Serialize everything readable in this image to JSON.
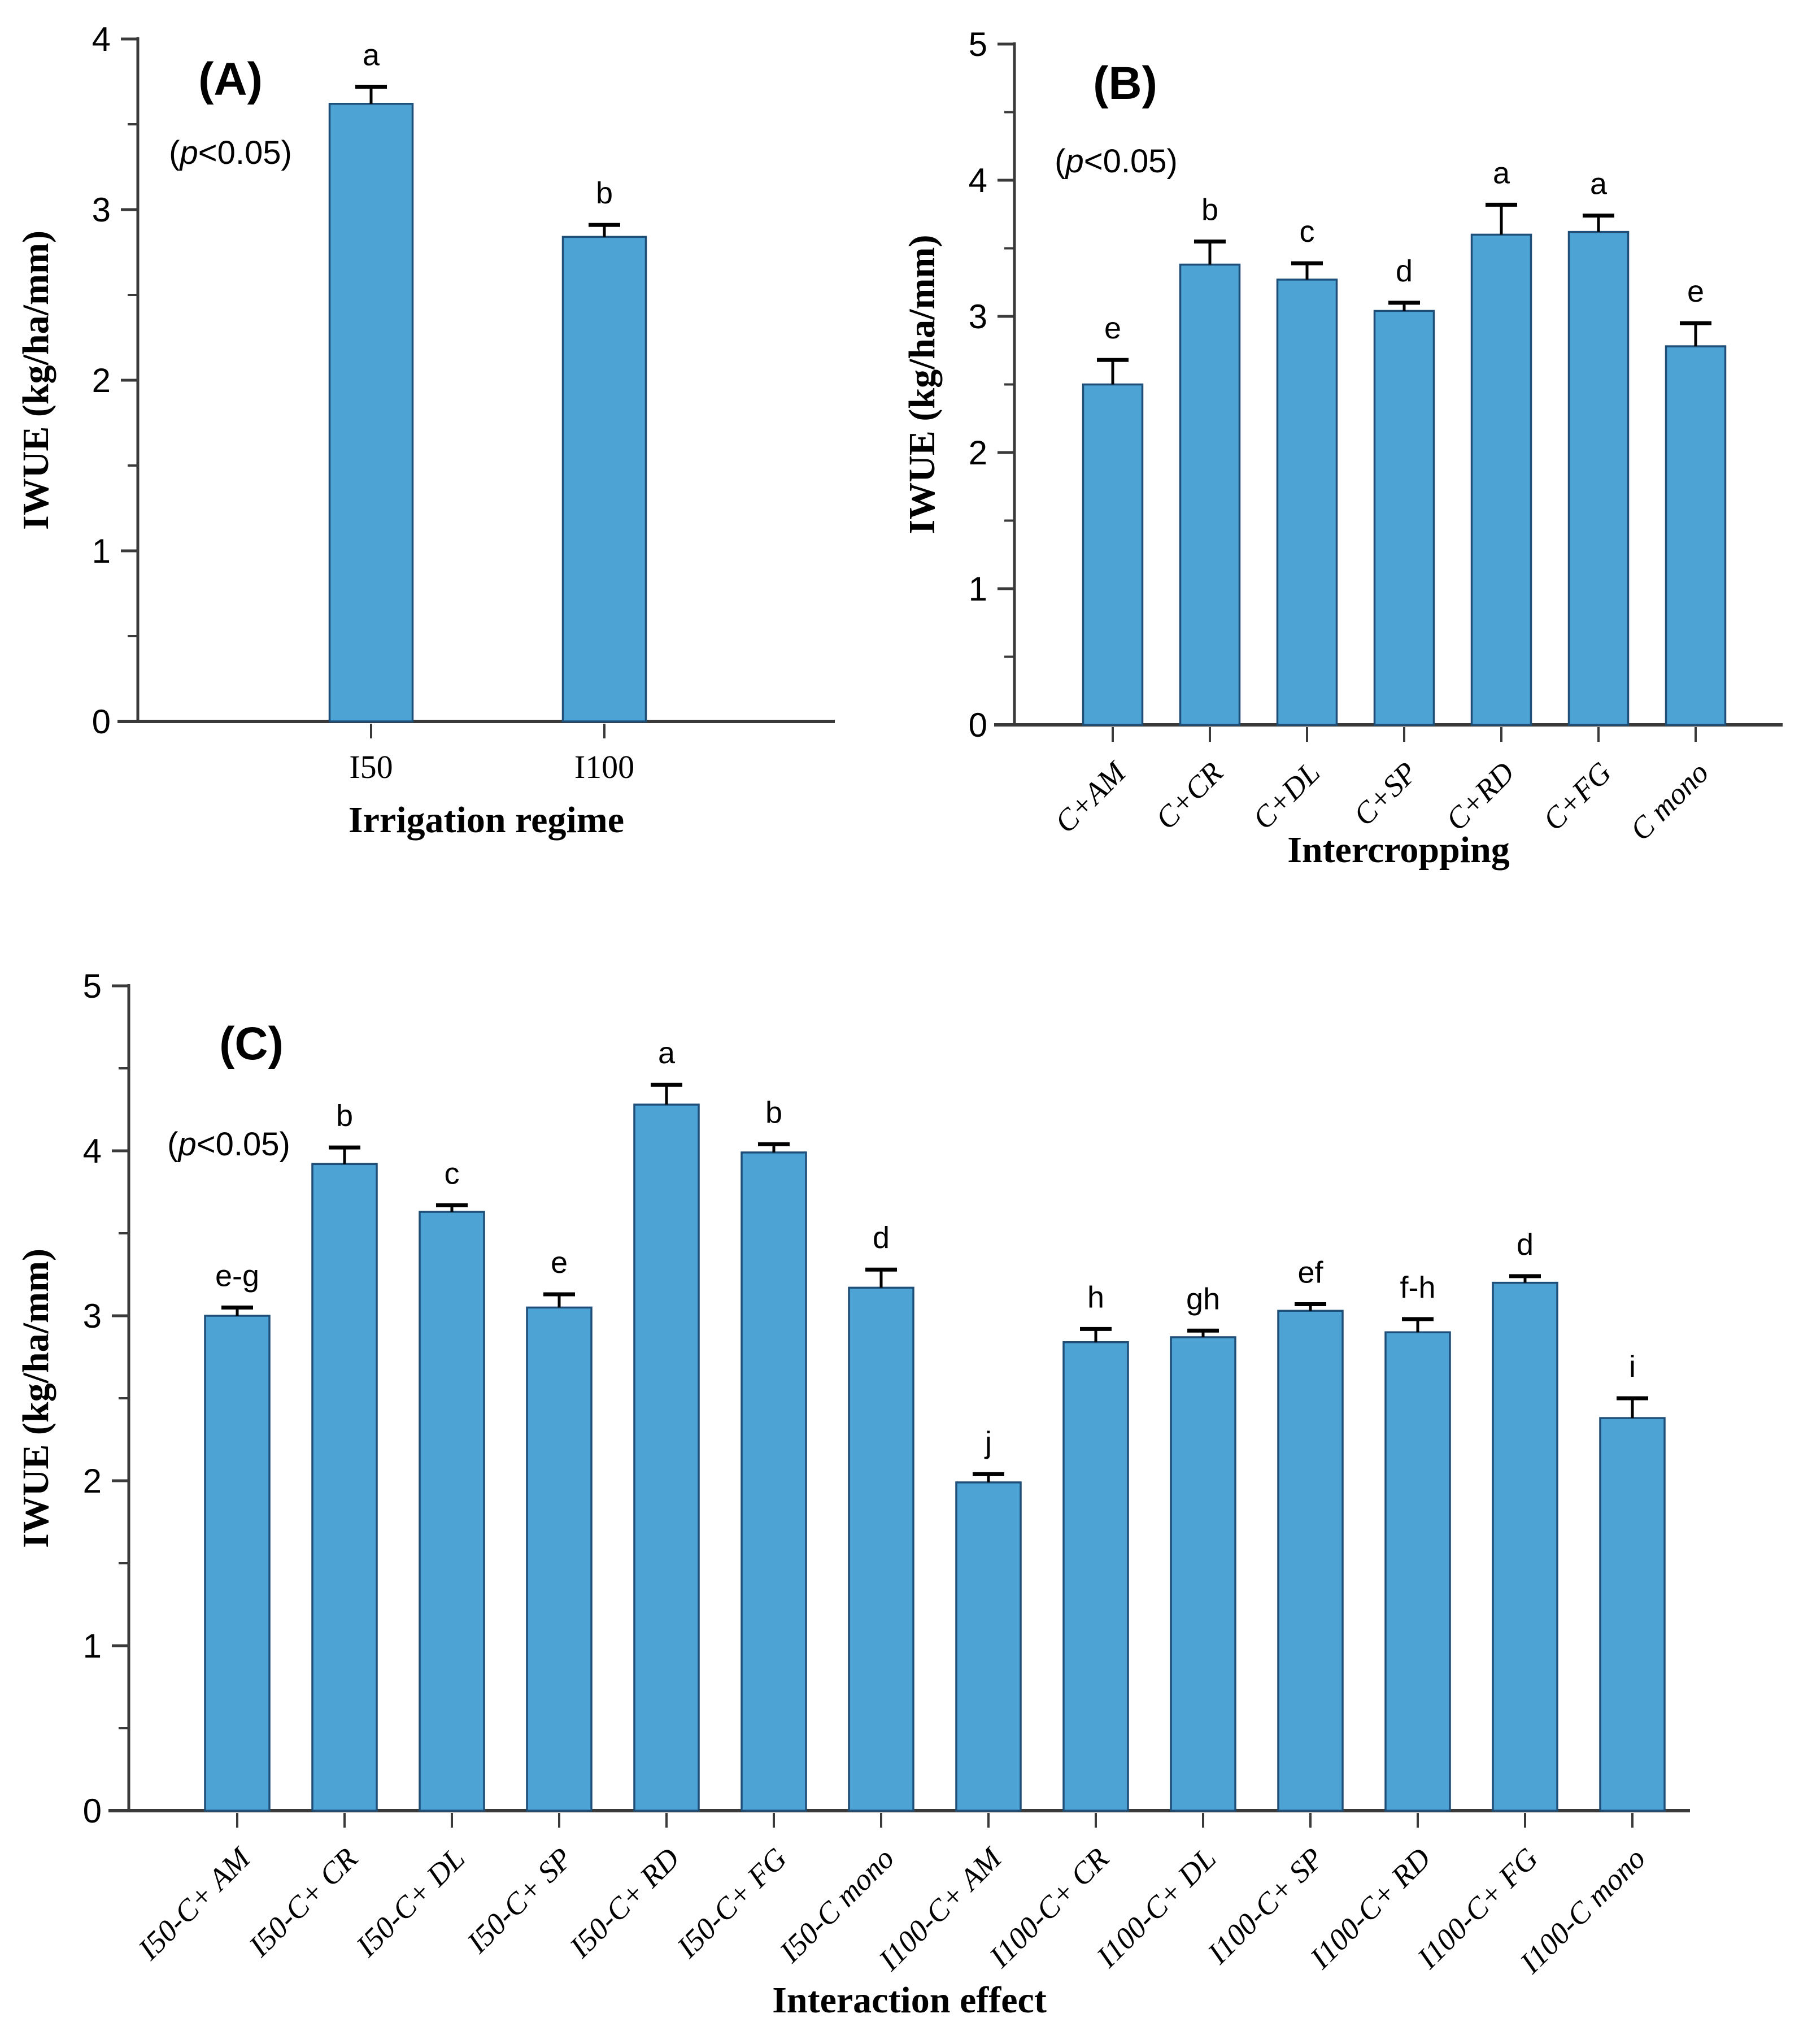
{
  "figure": {
    "background": "#ffffff",
    "bar_fill": "#4DA3D4",
    "bar_edge": "#1F4E79",
    "axis_color": "#3A3A3A",
    "text_color": "#000000",
    "ylabel": "IWUE (kg/ha/mm)"
  },
  "chart_data": [
    {
      "id": "A",
      "type": "bar",
      "panel_label": "(A)",
      "significance_note_italic": "p",
      "significance_note_rest": "<0.05",
      "significance_note": "(p<0.05)",
      "ylabel": "IWUE (kg/ha/mm)",
      "xlabel": "Irrigation regime",
      "ylim": [
        0,
        4
      ],
      "yticks": [
        0,
        1,
        2,
        3,
        4
      ],
      "minor_tick_step": 0.5,
      "tick_label_rotation": 0,
      "grid": false,
      "legend_position": "none",
      "categories": [
        "I50",
        "I100"
      ],
      "values": [
        3.62,
        2.84
      ],
      "errors": [
        0.1,
        0.07
      ],
      "letters": [
        "a",
        "b"
      ]
    },
    {
      "id": "B",
      "type": "bar",
      "panel_label": "(B)",
      "significance_note_italic": "p",
      "significance_note_rest": "<0.05",
      "significance_note": "(p<0.05)",
      "ylabel": "IWUE (kg/ha/mm)",
      "xlabel": "Intercropping",
      "ylim": [
        0,
        5
      ],
      "yticks": [
        0,
        1,
        2,
        3,
        4,
        5
      ],
      "minor_tick_step": 0.5,
      "tick_label_rotation": -45,
      "grid": false,
      "legend_position": "none",
      "categories": [
        "C+AM",
        "C+CR",
        "C+DL",
        "C+SP",
        "C+RD",
        "C+FG",
        "C mono"
      ],
      "values": [
        2.5,
        3.38,
        3.27,
        3.04,
        3.6,
        3.62,
        2.78
      ],
      "errors": [
        0.18,
        0.17,
        0.12,
        0.06,
        0.22,
        0.12,
        0.17
      ],
      "letters": [
        "e",
        "b",
        "c",
        "d",
        "a",
        "a",
        "e"
      ]
    },
    {
      "id": "C",
      "type": "bar",
      "panel_label": "(C)",
      "significance_note_italic": "p",
      "significance_note_rest": "<0.05",
      "significance_note": "(p<0.05)",
      "ylabel": "IWUE (kg/ha/mm)",
      "xlabel": "Interaction effect",
      "ylim": [
        0,
        5
      ],
      "yticks": [
        0,
        1,
        2,
        3,
        4,
        5
      ],
      "minor_tick_step": 0.5,
      "tick_label_rotation": -45,
      "grid": false,
      "legend_position": "none",
      "categories": [
        "I50-C+ AM",
        "I50-C+ CR",
        "I50-C+ DL",
        "I50-C+ SP",
        "I50-C+ RD",
        "I50-C+ FG",
        "I50-C mono",
        "I100-C+ AM",
        "I100-C+ CR",
        "I100-C+ DL",
        "I100-C+ SP",
        "I100-C+ RD",
        "I100-C+ FG",
        "I100-C mono"
      ],
      "values": [
        3.0,
        3.92,
        3.63,
        3.05,
        4.28,
        3.99,
        3.17,
        1.99,
        2.84,
        2.87,
        3.03,
        2.9,
        3.2,
        2.38
      ],
      "errors": [
        0.05,
        0.1,
        0.04,
        0.08,
        0.12,
        0.05,
        0.11,
        0.05,
        0.08,
        0.04,
        0.04,
        0.08,
        0.04,
        0.12
      ],
      "letters": [
        "e-g",
        "b",
        "c",
        "e",
        "a",
        "b",
        "d",
        "j",
        "h",
        "gh",
        "ef",
        "f-h",
        "d",
        "i"
      ]
    }
  ]
}
